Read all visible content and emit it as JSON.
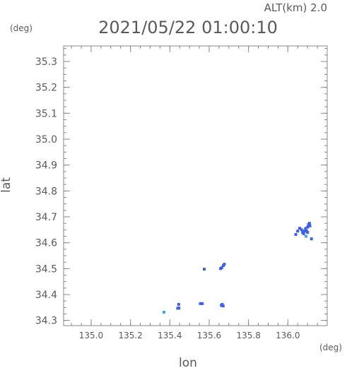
{
  "header": {
    "alt_label": "ALT(km)  2.0",
    "timestamp": "2021/05/22 01:00:10"
  },
  "chart_data": {
    "type": "scatter",
    "title": "2021/05/22 01:00:10",
    "xlabel": "lon",
    "ylabel": "lat",
    "x_unit": "(deg)",
    "y_unit": "(deg)",
    "xlim": [
      134.86,
      136.2
    ],
    "ylim": [
      34.28,
      35.36
    ],
    "x_ticks": [
      135.0,
      135.2,
      135.4,
      135.6,
      135.8,
      136.0
    ],
    "x_tick_labels": [
      "135.0",
      "135.2",
      "135.4",
      "135.6",
      "135.8",
      "136.0"
    ],
    "y_ticks": [
      34.3,
      34.4,
      34.5,
      34.6,
      34.7,
      34.8,
      34.9,
      35.0,
      35.1,
      35.2,
      35.3
    ],
    "y_tick_labels": [
      "34.3",
      "34.4",
      "34.5",
      "34.6",
      "34.7",
      "34.8",
      "34.9",
      "35.0",
      "35.1",
      "35.2",
      "35.3"
    ],
    "grid": false,
    "points": [
      {
        "x": 135.37,
        "y": 34.332,
        "color": "#3aa6e6"
      },
      {
        "x": 135.446,
        "y": 34.348,
        "color": "#3f5fe0"
      },
      {
        "x": 135.44,
        "y": 34.347,
        "color": "#3f5fe0"
      },
      {
        "x": 135.445,
        "y": 34.362,
        "color": "#3f5fe0"
      },
      {
        "x": 135.555,
        "y": 34.365,
        "color": "#3f5fe0"
      },
      {
        "x": 135.565,
        "y": 34.365,
        "color": "#3f5fe0"
      },
      {
        "x": 135.662,
        "y": 34.358,
        "color": "#3f5fe0"
      },
      {
        "x": 135.666,
        "y": 34.362,
        "color": "#3f5fe0"
      },
      {
        "x": 135.671,
        "y": 34.356,
        "color": "#3f5fe0"
      },
      {
        "x": 135.575,
        "y": 34.498,
        "color": "#3f5fe0"
      },
      {
        "x": 135.658,
        "y": 34.5,
        "color": "#3f5fe0"
      },
      {
        "x": 135.664,
        "y": 34.504,
        "color": "#3f5fe0"
      },
      {
        "x": 135.672,
        "y": 34.512,
        "color": "#3f5fe0"
      },
      {
        "x": 135.677,
        "y": 34.517,
        "color": "#3f5fe0"
      },
      {
        "x": 136.04,
        "y": 34.632,
        "color": "#3f5fe0"
      },
      {
        "x": 136.05,
        "y": 34.645,
        "color": "#3f5fe0"
      },
      {
        "x": 136.06,
        "y": 34.656,
        "color": "#3f5fe0"
      },
      {
        "x": 136.07,
        "y": 34.65,
        "color": "#3f5fe0"
      },
      {
        "x": 136.075,
        "y": 34.64,
        "color": "#3f5fe0"
      },
      {
        "x": 136.08,
        "y": 34.635,
        "color": "#3f5fe0"
      },
      {
        "x": 136.085,
        "y": 34.645,
        "color": "#3f5fe0"
      },
      {
        "x": 136.09,
        "y": 34.655,
        "color": "#3f5fe0"
      },
      {
        "x": 136.095,
        "y": 34.645,
        "color": "#3f5fe0"
      },
      {
        "x": 136.1,
        "y": 34.66,
        "color": "#3f5fe0"
      },
      {
        "x": 136.105,
        "y": 34.67,
        "color": "#3f5fe0"
      },
      {
        "x": 136.11,
        "y": 34.675,
        "color": "#3f5fe0"
      },
      {
        "x": 136.112,
        "y": 34.665,
        "color": "#3f5fe0"
      },
      {
        "x": 136.1,
        "y": 34.64,
        "color": "#3f5fe0"
      },
      {
        "x": 136.092,
        "y": 34.625,
        "color": "#3aa6e6"
      },
      {
        "x": 136.12,
        "y": 34.615,
        "color": "#3f5fe0"
      }
    ]
  }
}
